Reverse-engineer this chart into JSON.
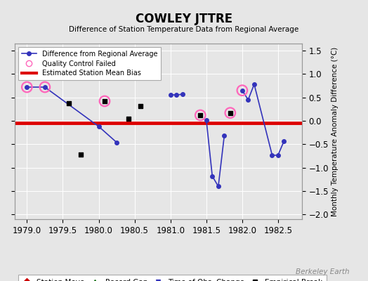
{
  "title": "COWLEY JTTRE",
  "subtitle": "Difference of Station Temperature Data from Regional Average",
  "ylabel_right": "Monthly Temperature Anomaly Difference (°C)",
  "xlim": [
    1978.83,
    1982.83
  ],
  "ylim": [
    -2.1,
    1.65
  ],
  "yticks": [
    -2,
    -1.5,
    -1,
    -0.5,
    0,
    0.5,
    1,
    1.5
  ],
  "xticks": [
    1979,
    1979.5,
    1980,
    1980.5,
    1981,
    1981.5,
    1982,
    1982.5
  ],
  "mean_bias": -0.05,
  "background_color": "#e6e6e6",
  "plot_bg_color": "#e6e6e6",
  "line_color": "#3333bb",
  "bias_color": "#dd0000",
  "qc_color": "#ff66bb",
  "watermark": "Berkeley Earth",
  "line_segments": [
    [
      1979.0,
      0.72,
      1979.25,
      0.72
    ],
    [
      1979.25,
      0.72,
      1980.0,
      -0.12
    ],
    [
      1980.0,
      -0.12,
      1980.25,
      -0.46
    ],
    [
      1981.0,
      0.55,
      1981.083,
      0.55
    ],
    [
      1981.083,
      0.55,
      1981.167,
      0.57
    ],
    [
      1981.5,
      0.02,
      1981.583,
      -1.18
    ],
    [
      1981.583,
      -1.18,
      1981.667,
      -1.4
    ],
    [
      1981.667,
      -1.4,
      1981.75,
      -0.32
    ],
    [
      1982.0,
      0.65,
      1982.083,
      0.45
    ],
    [
      1982.083,
      0.45,
      1982.167,
      0.78
    ],
    [
      1982.167,
      0.78,
      1982.417,
      -0.73
    ],
    [
      1982.417,
      -0.73,
      1982.5,
      -0.73
    ],
    [
      1982.5,
      -0.73,
      1982.583,
      -0.43
    ]
  ],
  "dot_points_x": [
    1979.0,
    1979.25,
    1980.0,
    1980.25,
    1981.0,
    1981.083,
    1981.167,
    1981.5,
    1981.583,
    1981.667,
    1981.75,
    1982.0,
    1982.083,
    1982.167,
    1982.417,
    1982.5,
    1982.583
  ],
  "dot_points_y": [
    0.72,
    0.72,
    -0.12,
    -0.46,
    0.55,
    0.55,
    0.57,
    0.02,
    -1.18,
    -1.4,
    -0.32,
    0.65,
    0.45,
    0.78,
    -0.73,
    -0.73,
    -0.43
  ],
  "isolated_x": [
    1979.583,
    1979.75,
    1980.083,
    1980.417,
    1980.583,
    1981.417,
    1981.833
  ],
  "isolated_y": [
    0.38,
    -0.72,
    0.42,
    0.05,
    0.32,
    0.12,
    0.17
  ],
  "qc_failed_x": [
    1979.0,
    1979.25,
    1980.083,
    1981.417,
    1981.833,
    1982.0
  ],
  "qc_failed_y": [
    0.72,
    0.72,
    0.42,
    0.12,
    0.17,
    0.65
  ]
}
